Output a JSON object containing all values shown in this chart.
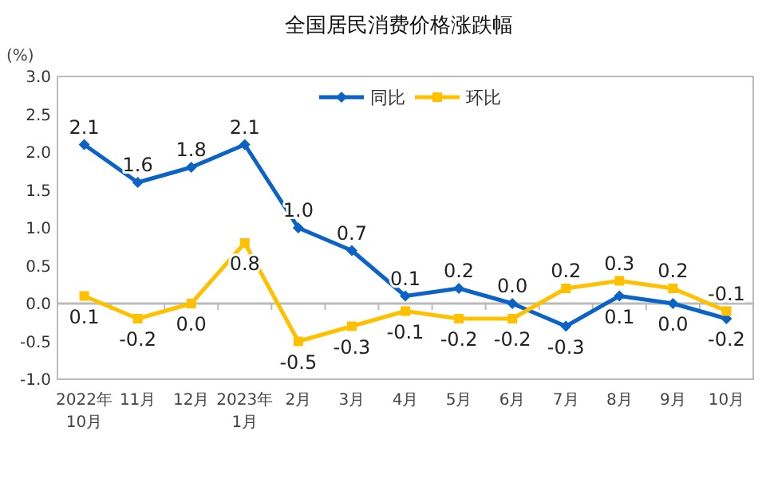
{
  "chart_data": {
    "type": "line",
    "title": "全国居民消费价格涨跌幅",
    "ylabel": "(%)",
    "categories": [
      "2022年\n10月",
      "11月",
      "12月",
      "2023年\n1月",
      "2月",
      "3月",
      "4月",
      "5月",
      "6月",
      "7月",
      "8月",
      "9月",
      "10月"
    ],
    "series": [
      {
        "name": "同比",
        "color": "#0b63c5",
        "marker": "diamond",
        "values": [
          2.1,
          1.6,
          1.8,
          2.1,
          1.0,
          0.7,
          0.1,
          0.2,
          0.0,
          -0.3,
          0.1,
          0.0,
          -0.2
        ],
        "value_labels": [
          "2.1",
          "1.6",
          "1.8",
          "2.1",
          "1.0",
          "0.7",
          "0.1",
          "0.2",
          "0.0",
          "-0.3",
          "0.1",
          "0.0",
          "-0.2"
        ]
      },
      {
        "name": "环比",
        "color": "#ffc000",
        "marker": "square",
        "values": [
          0.1,
          -0.2,
          0.0,
          0.8,
          -0.5,
          -0.3,
          -0.1,
          -0.2,
          -0.2,
          0.2,
          0.3,
          0.2,
          -0.1
        ],
        "value_labels": [
          "0.1",
          "-0.2",
          "0.0",
          "0.8",
          "-0.5",
          "-0.3",
          "-0.1",
          "-0.2",
          "-0.2",
          "0.2",
          "0.3",
          "0.2",
          "-0.1"
        ]
      }
    ],
    "ylim": [
      -1,
      3
    ],
    "yticks": [
      {
        "value": -1,
        "label": "-1.0"
      },
      {
        "value": -0.5,
        "label": "-0.5"
      },
      {
        "value": 0,
        "label": "0.0"
      },
      {
        "value": 0.5,
        "label": "0.5"
      },
      {
        "value": 1,
        "label": "1.0"
      },
      {
        "value": 1.5,
        "label": "1.5"
      },
      {
        "value": 2,
        "label": "2.0"
      },
      {
        "value": 2.5,
        "label": "2.5"
      },
      {
        "value": 3,
        "label": "3.0"
      }
    ],
    "legend": "top"
  }
}
